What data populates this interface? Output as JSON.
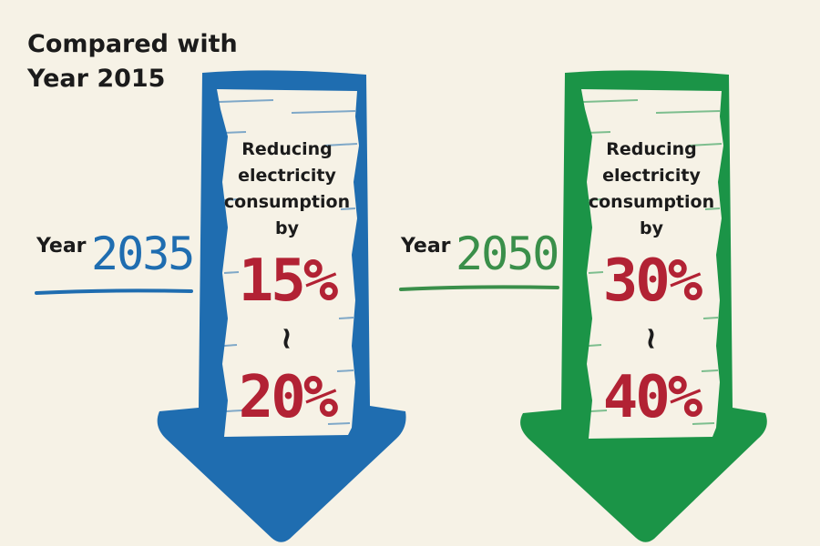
{
  "header": {
    "title_line1": "Compared with",
    "title_line2": "Year 2015"
  },
  "colors": {
    "background": "#f6f2e6",
    "blue_arrow": "#1f6db0",
    "green_arrow": "#1b9447",
    "percent_red": "#b22234",
    "text_dark": "#1b1b1b"
  },
  "targets": [
    {
      "year_label": "Year",
      "year_value": "2035",
      "line1": "Reducing",
      "line2": "electricity",
      "line3": "consumption",
      "line4": "by",
      "low": "15%",
      "separator": "~",
      "high": "20%",
      "arrow_color": "blue",
      "icon": "down-arrow-icon"
    },
    {
      "year_label": "Year",
      "year_value": "2050",
      "line1": "Reducing",
      "line2": "electricity",
      "line3": "consumption",
      "line4": "by",
      "low": "30%",
      "separator": "~",
      "high": "40%",
      "arrow_color": "green",
      "icon": "down-arrow-icon"
    }
  ]
}
